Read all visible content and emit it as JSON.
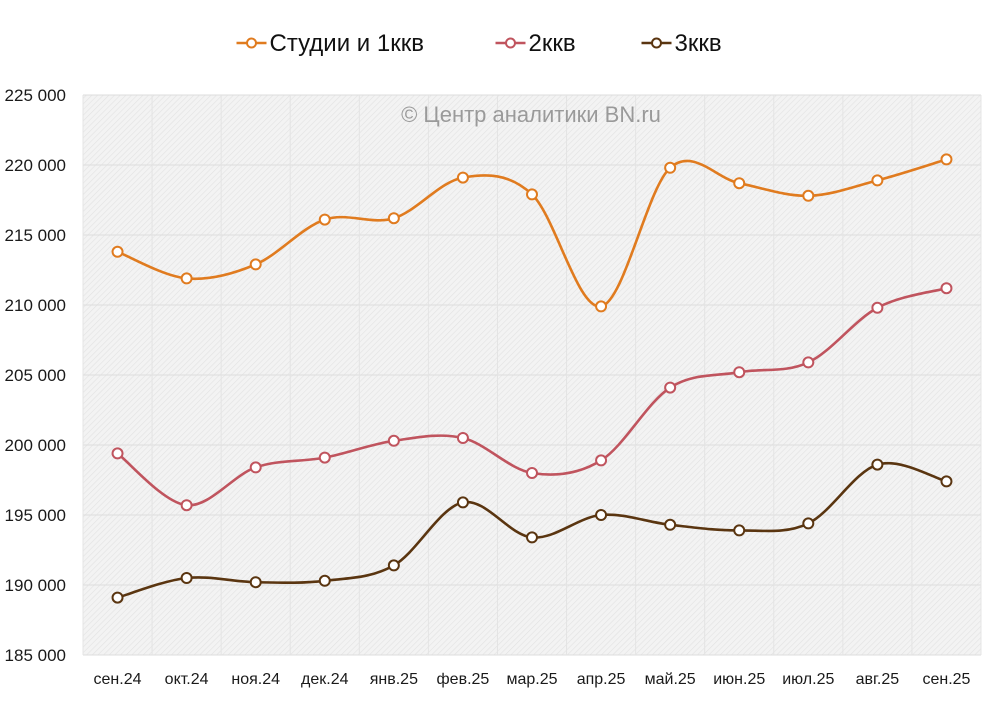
{
  "chart_data": {
    "type": "line",
    "title": "",
    "xlabel": "",
    "ylabel": "",
    "watermark": "© Центр аналитики BN.ru",
    "categories": [
      "сен.24",
      "окт.24",
      "ноя.24",
      "дек.24",
      "янв.25",
      "фев.25",
      "мар.25",
      "апр.25",
      "май.25",
      "июн.25",
      "июл.25",
      "авг.25",
      "сен.25"
    ],
    "ylim": [
      185000,
      225000
    ],
    "yticks": [
      185000,
      190000,
      195000,
      200000,
      205000,
      210000,
      215000,
      220000,
      225000
    ],
    "ytick_labels": [
      "185 000",
      "190 000",
      "195 000",
      "200 000",
      "205 000",
      "210 000",
      "215 000",
      "220 000",
      "225 000"
    ],
    "grid": true,
    "smooth": true,
    "markers": "hollow-circle",
    "legend_position": "top-center",
    "series": [
      {
        "name": "Студии и 1ккв",
        "color": "#E07B1F",
        "values": [
          213800,
          211900,
          212900,
          216100,
          216200,
          219100,
          217900,
          209900,
          219800,
          218700,
          217800,
          218900,
          220400
        ]
      },
      {
        "name": "2ккв",
        "color": "#C0545E",
        "values": [
          199400,
          195700,
          198400,
          199100,
          200300,
          200500,
          198000,
          198900,
          204100,
          205200,
          205900,
          209800,
          211200
        ]
      },
      {
        "name": "3ккв",
        "color": "#5A3510",
        "values": [
          189100,
          190500,
          190200,
          190300,
          191400,
          195900,
          193400,
          195000,
          194300,
          193900,
          194400,
          198600,
          197400
        ]
      }
    ]
  }
}
